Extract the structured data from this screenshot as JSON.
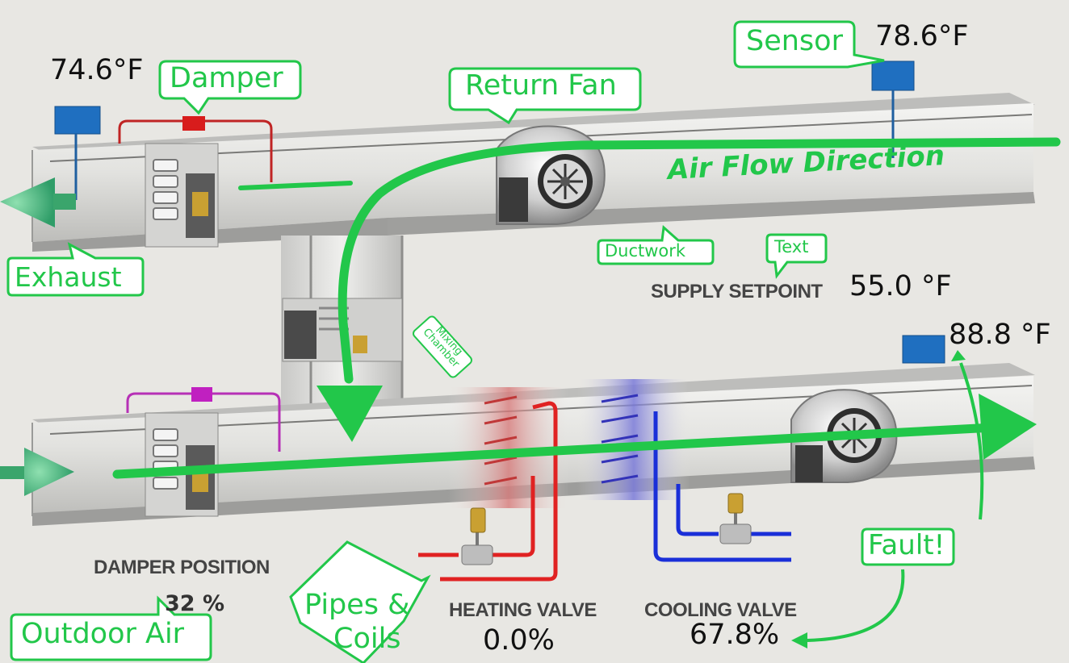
{
  "readings": {
    "exhaust_temp": "74.6°F",
    "return_temp": "78.6°F",
    "supply_setpoint_label": "SUPPLY SETPOINT",
    "supply_setpoint_value": "55.0 °F",
    "supply_temp": "88.8 °F",
    "damper_position_label": "DAMPER POSITION",
    "damper_position_value": "32 %",
    "heating_valve_label": "HEATING VALVE",
    "heating_valve_value": "0.0%",
    "cooling_valve_label": "COOLING VALVE",
    "cooling_valve_value": "67.8%"
  },
  "callouts": {
    "sensor": "Sensor",
    "damper": "Damper",
    "return_fan": "Return Fan",
    "air_flow": "Air Flow Direction",
    "ductwork": "Ductwork",
    "text": "Text",
    "exhaust": "Exhaust",
    "mixing_chamber_line1": "Mixing",
    "mixing_chamber_line2": "Chamber",
    "pipes_coils_line1": "Pipes &",
    "pipes_coils_line2": "Coils",
    "outdoor_air": "Outdoor Air",
    "fault": "Fault!"
  },
  "colors": {
    "annotation_green": "#22c74a",
    "heating_pipe": "#e02222",
    "cooling_pipe": "#1a2fd8",
    "damper_actuator_return": "#d81c1c",
    "damper_actuator_outdoor": "#c020c0",
    "sensor_box": "#1f6fc0"
  },
  "icons": [
    "temperature-sensor-icon",
    "fan-icon",
    "damper-icon",
    "valve-icon",
    "arrow-icon"
  ]
}
